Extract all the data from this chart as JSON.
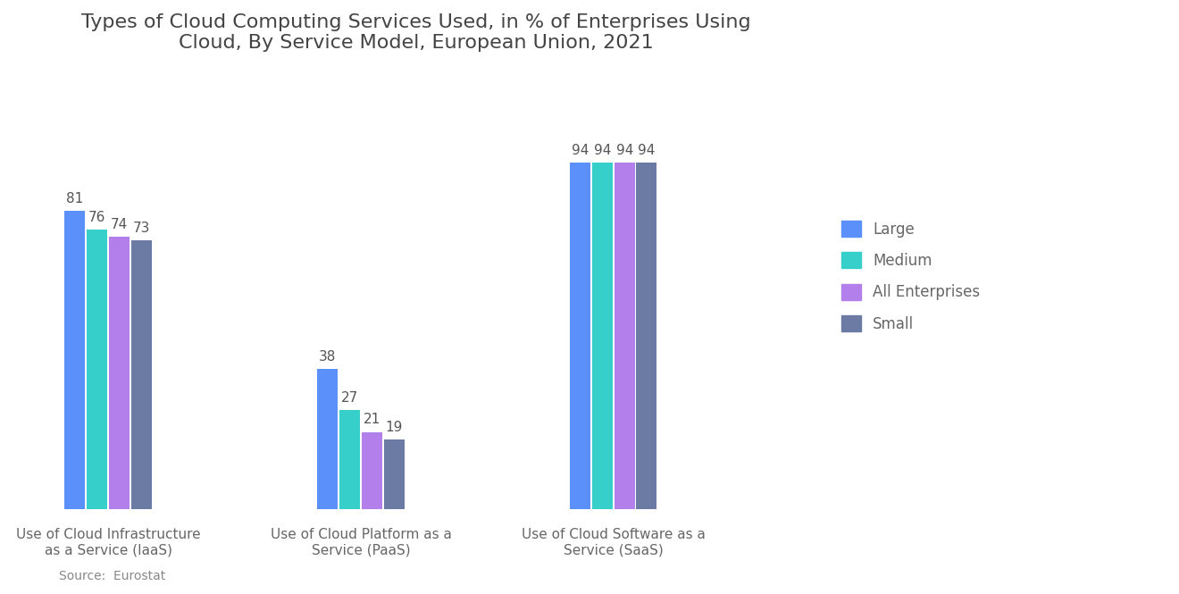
{
  "title": "Types of Cloud Computing Services Used, in % of Enterprises Using\nCloud, By Service Model, European Union, 2021",
  "categories": [
    "Use of Cloud Infrastructure\nas a Service (IaaS)",
    "Use of Cloud Platform as a\nService (PaaS)",
    "Use of Cloud Software as a\nService (SaaS)"
  ],
  "series": {
    "Large": [
      81,
      38,
      94
    ],
    "Medium": [
      76,
      27,
      94
    ],
    "All Enterprises": [
      74,
      21,
      94
    ],
    "Small": [
      73,
      19,
      94
    ]
  },
  "colors": {
    "Large": "#5B8FF9",
    "Medium": "#36CFC9",
    "All Enterprises": "#B37FEB",
    "Small": "#6B7BA4"
  },
  "legend_order": [
    "Large",
    "Medium",
    "All Enterprises",
    "Small"
  ],
  "source": "Source:  Eurostat",
  "background_color": "#FFFFFF",
  "bar_width": 0.13,
  "group_positions": [
    1.0,
    2.6,
    4.2
  ],
  "ylim": [
    0,
    115
  ],
  "title_fontsize": 16,
  "label_fontsize": 12,
  "tick_fontsize": 11,
  "annotation_fontsize": 11,
  "xlim": [
    0.4,
    5.5
  ]
}
